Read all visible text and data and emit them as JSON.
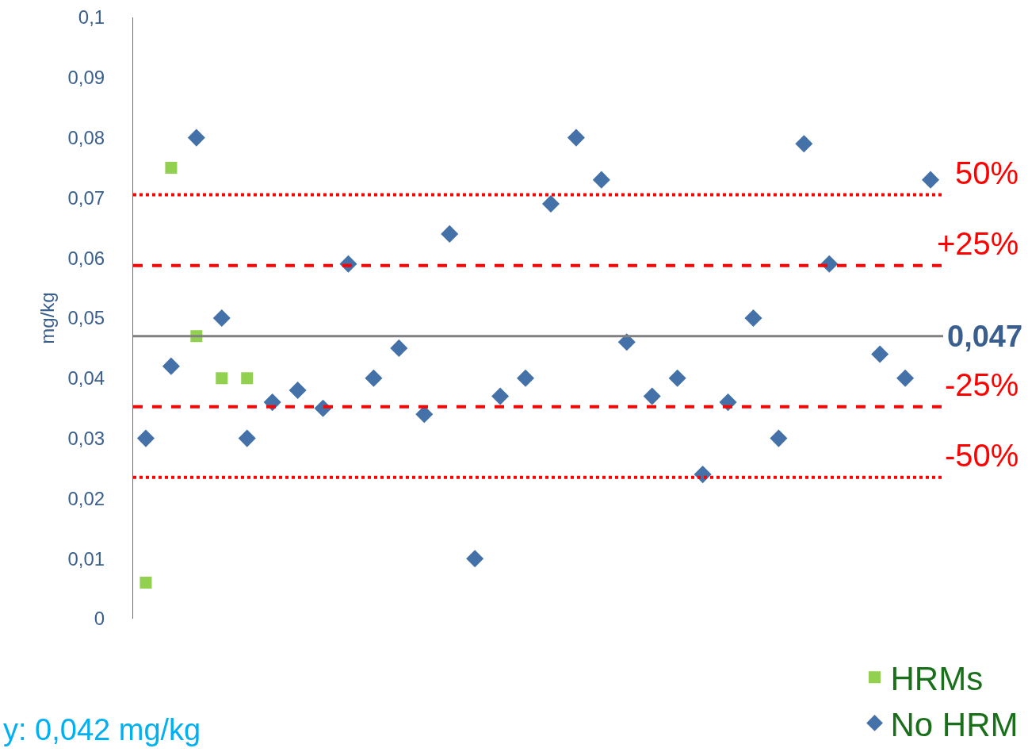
{
  "chart_data": {
    "type": "scatter",
    "ylabel": "mg/kg",
    "categories": [
      null,
      null,
      null,
      null,
      null,
      null,
      null,
      null,
      null,
      null,
      null,
      null,
      null,
      null,
      null,
      null,
      null,
      null,
      null,
      null,
      null,
      null,
      null,
      null,
      null,
      null,
      null,
      null,
      null,
      null,
      null,
      null
    ],
    "series": [
      {
        "name": "HRMs",
        "color": "#92d050",
        "marker": "square",
        "values": [
          0.006,
          0.075,
          0.047,
          0.04,
          0.04,
          null,
          null,
          null,
          null,
          null,
          null,
          null,
          null,
          null,
          null,
          null,
          null,
          null,
          null,
          null,
          null,
          null,
          null,
          null,
          null,
          null,
          null,
          null,
          null,
          null,
          null,
          null
        ]
      },
      {
        "name": "No HRM",
        "color": "#4472a8",
        "marker": "diamond",
        "values": [
          0.03,
          0.042,
          0.08,
          0.05,
          0.03,
          0.036,
          0.038,
          0.035,
          0.059,
          0.04,
          0.045,
          0.034,
          0.064,
          0.01,
          0.037,
          0.04,
          0.069,
          0.08,
          0.073,
          0.046,
          0.037,
          0.04,
          0.024,
          0.036,
          0.05,
          0.03,
          0.079,
          0.059,
          null,
          0.044,
          0.04,
          0.073
        ]
      }
    ],
    "ylim": [
      0,
      0.1
    ],
    "yticks": [
      0,
      {
        "value": 0.01,
        "label": "0,01"
      },
      {
        "value": 0.02,
        "label": "0,02"
      },
      {
        "value": 0.03,
        "label": "0,03"
      },
      {
        "value": 0.04,
        "label": "0,04"
      },
      {
        "value": 0.05,
        "label": "0,05"
      },
      {
        "value": 0.06,
        "label": "0,06"
      },
      {
        "value": 0.07,
        "label": "0,07"
      },
      {
        "value": 0.08,
        "label": "0,08"
      },
      {
        "value": 0.09,
        "label": "0,09"
      },
      {
        "value": 0.1,
        "label": "0,1"
      }
    ],
    "ref_lines": [
      {
        "axis": "y",
        "value": 0.0705,
        "color": "#ff0000",
        "line_style": "dotted"
      },
      {
        "axis": "y",
        "value": 0.05875,
        "color": "#ff0000",
        "line_style": "dashed"
      },
      {
        "axis": "y",
        "value": 0.047,
        "label": "0,047",
        "color": "#808080",
        "line_style": "solid"
      },
      {
        "axis": "y",
        "value": 0.03525,
        "color": "#ff0000",
        "line_style": "dashed"
      },
      {
        "axis": "y",
        "value": 0.0235,
        "color": "#ff0000",
        "line_style": "dotted"
      }
    ],
    "annotations": [
      "50%",
      "+25%",
      "-25%",
      "-50%",
      "y: 0,042 mg/kg"
    ],
    "grid": false,
    "legend": "bottom right",
    "tick_labels": "y"
  }
}
